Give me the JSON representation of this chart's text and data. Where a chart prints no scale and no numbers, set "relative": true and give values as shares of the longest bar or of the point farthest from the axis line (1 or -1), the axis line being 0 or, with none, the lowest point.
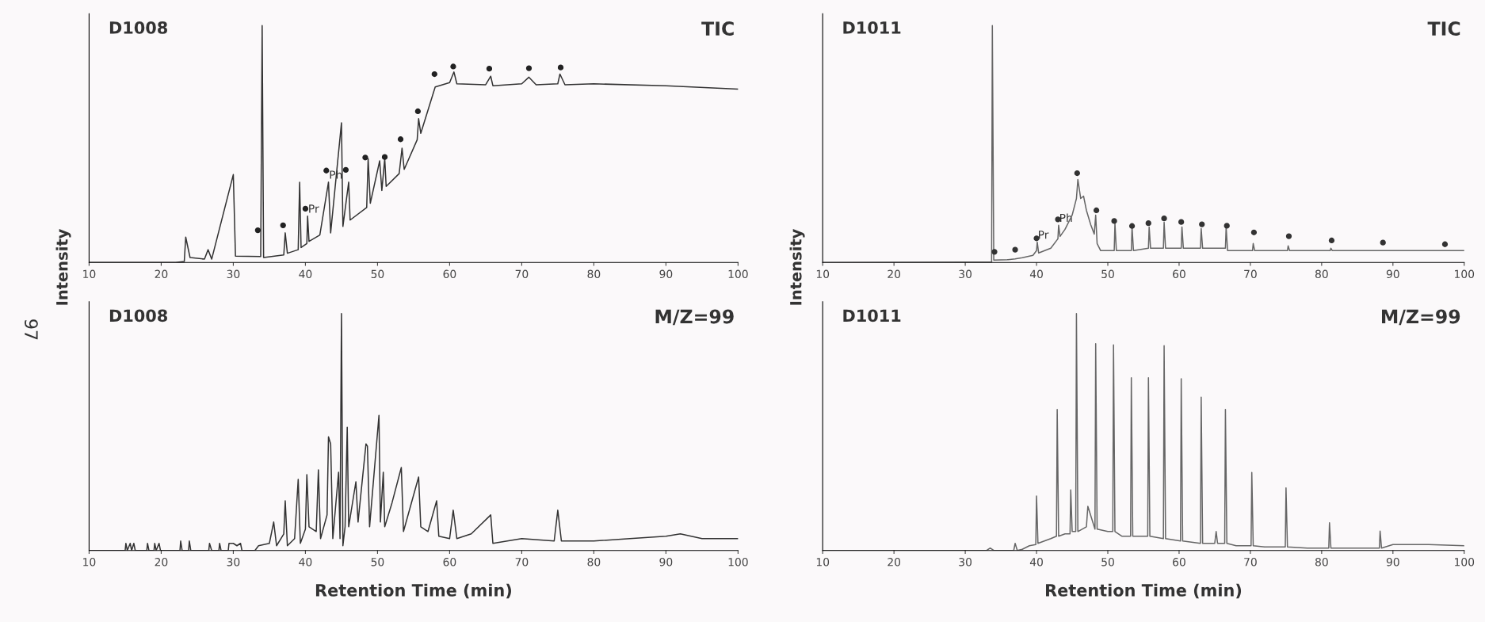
{
  "chart_data": [
    {
      "type": "line",
      "title": "D1008",
      "subtitle": "TIC",
      "ylabel": "Intensity",
      "relative": true,
      "xlim": [
        10,
        100
      ],
      "xticks": [
        10,
        20,
        30,
        40,
        50,
        60,
        70,
        80,
        90,
        100
      ],
      "grid": false,
      "legend": false,
      "annotations": [
        "97",
        {
          "text": "Pr",
          "x": 40.3,
          "y": 0.196
        },
        {
          "text": "Ph",
          "x": 43.2,
          "y": 0.339
        }
      ],
      "series": [
        {
          "color": "#333333",
          "marker": "none",
          "x": [
            10,
            22,
            23.2,
            23.4,
            24,
            26,
            26.5,
            27,
            30.0,
            30.3,
            33.8,
            34.0,
            34.2,
            37,
            37.2,
            37.5,
            39,
            39.2,
            39.4,
            40.2,
            40.3,
            40.5,
            42,
            43.2,
            43.5,
            45.0,
            45.2,
            46,
            46.2,
            48.5,
            48.7,
            49,
            50.3,
            50.6,
            51.0,
            51.2,
            53,
            53.4,
            53.7,
            55.5,
            55.7,
            56,
            57,
            58,
            60,
            60.6,
            61,
            65,
            65.7,
            66,
            70,
            71,
            72,
            75,
            75.3,
            76,
            80,
            90,
            100
          ],
          "values": [
            0,
            0,
            0.004,
            0.107,
            0.021,
            0.014,
            0.054,
            0.014,
            0.371,
            0.027,
            0.025,
            1.0,
            0.021,
            0.032,
            0.125,
            0.039,
            0.054,
            0.339,
            0.063,
            0.08,
            0.196,
            0.089,
            0.116,
            0.339,
            0.125,
            0.589,
            0.152,
            0.339,
            0.179,
            0.232,
            0.438,
            0.25,
            0.429,
            0.304,
            0.438,
            0.321,
            0.375,
            0.482,
            0.393,
            0.518,
            0.607,
            0.545,
            0.643,
            0.741,
            0.759,
            0.804,
            0.754,
            0.75,
            0.786,
            0.746,
            0.754,
            0.782,
            0.75,
            0.754,
            0.795,
            0.75,
            0.754,
            0.746,
            0.732
          ]
        },
        {
          "type": "scatter",
          "color": "#222222",
          "marker": "circle",
          "x": [
            33.4,
            36.9,
            40.0,
            42.9,
            45.6,
            48.3,
            51.0,
            53.2,
            55.6,
            57.9,
            60.5,
            65.5,
            71.0,
            75.4
          ],
          "values": [
            0.136,
            0.157,
            0.227,
            0.388,
            0.391,
            0.443,
            0.445,
            0.52,
            0.638,
            0.795,
            0.827,
            0.818,
            0.82,
            0.823
          ]
        }
      ]
    },
    {
      "type": "line",
      "title": "D1011",
      "subtitle": "TIC",
      "ylabel": "Intensity",
      "relative": true,
      "xlim": [
        10,
        100
      ],
      "xticks": [
        10,
        20,
        30,
        40,
        50,
        60,
        70,
        80,
        90,
        100
      ],
      "grid": false,
      "legend": false,
      "annotations": [
        {
          "text": "Pr",
          "x": 40.1,
          "y": 0.086
        },
        {
          "text": "Ph",
          "x": 43.1,
          "y": 0.157
        }
      ],
      "series": [
        {
          "color": "#666666",
          "marker": "none",
          "x": [
            10,
            30,
            33.7,
            33.8,
            34,
            36,
            37,
            38,
            39.5,
            40,
            40.1,
            40.3,
            42,
            43,
            43.1,
            43.3,
            44,
            45,
            45.6,
            45.8,
            46.2,
            46.6,
            47.0,
            47.6,
            48.1,
            48.3,
            48.5,
            49,
            50,
            50.9,
            51.0,
            51.2,
            53.3,
            53.4,
            53.6,
            55.7,
            55.8,
            56,
            57.8,
            57.9,
            58.1,
            60.3,
            60.4,
            60.6,
            63.0,
            63.1,
            63.3,
            66.5,
            66.6,
            66.8,
            70.3,
            70.4,
            70.6,
            75.2,
            75.3,
            75.5,
            81.2,
            81.3,
            81.5,
            88.3,
            88.5,
            97,
            100
          ],
          "values": [
            0,
            0.002,
            0.002,
            1.0,
            0.01,
            0.012,
            0.015,
            0.02,
            0.03,
            0.05,
            0.086,
            0.04,
            0.06,
            0.1,
            0.157,
            0.11,
            0.14,
            0.2,
            0.27,
            0.35,
            0.27,
            0.28,
            0.22,
            0.16,
            0.12,
            0.2,
            0.08,
            0.05,
            0.05,
            0.05,
            0.166,
            0.05,
            0.05,
            0.15,
            0.05,
            0.06,
            0.15,
            0.06,
            0.06,
            0.17,
            0.06,
            0.06,
            0.15,
            0.06,
            0.06,
            0.143,
            0.06,
            0.06,
            0.15,
            0.05,
            0.05,
            0.08,
            0.05,
            0.05,
            0.07,
            0.05,
            0.05,
            0.06,
            0.05,
            0.05,
            0.05,
            0.05,
            0.05
          ]
        },
        {
          "type": "scatter",
          "color": "#333333",
          "marker": "circle",
          "x": [
            34.1,
            37.0,
            40.0,
            43.0,
            45.7,
            48.4,
            50.9,
            53.4,
            55.7,
            57.9,
            60.3,
            63.2,
            66.7,
            70.5,
            75.4,
            81.4,
            88.6,
            97.3
          ],
          "values": [
            0.045,
            0.054,
            0.102,
            0.182,
            0.377,
            0.22,
            0.175,
            0.154,
            0.166,
            0.186,
            0.171,
            0.161,
            0.155,
            0.127,
            0.111,
            0.093,
            0.084,
            0.077
          ]
        }
      ]
    },
    {
      "type": "line",
      "title": "D1008",
      "subtitle": "M/Z=99",
      "xlabel": "Retention Time (min)",
      "relative": true,
      "xlim": [
        10,
        100
      ],
      "xticks": [
        10,
        20,
        30,
        40,
        50,
        60,
        70,
        80,
        90,
        100
      ],
      "grid": false,
      "legend": false,
      "series": [
        {
          "color": "#333333",
          "marker": "none",
          "x": [
            10,
            15,
            15.1,
            15.3,
            15.7,
            15.9,
            16.2,
            16.4,
            18,
            18.1,
            18.3,
            19,
            19.1,
            19.3,
            19.7,
            19.9,
            22.6,
            22.7,
            22.9,
            23.8,
            23.9,
            24.1,
            26.6,
            26.7,
            27,
            28,
            28.1,
            28.3,
            29.3,
            29.4,
            30,
            30.5,
            31,
            31.2,
            33,
            33.5,
            35,
            35.6,
            36,
            37,
            37.2,
            37.5,
            38.5,
            39,
            39.3,
            40,
            40.2,
            40.5,
            41.5,
            41.8,
            42.1,
            43,
            43.2,
            43.5,
            43.8,
            44.6,
            44.8,
            45.0,
            45.2,
            45.5,
            45.8,
            46,
            47,
            47.3,
            48.4,
            48.6,
            48.9,
            50.2,
            50.4,
            50.8,
            51,
            52,
            53.3,
            53.6,
            55.7,
            56,
            57,
            58.2,
            58.5,
            60,
            60.5,
            61,
            63,
            65.7,
            66,
            70,
            74.5,
            75,
            75.5,
            80,
            85,
            90,
            92,
            95,
            100
          ],
          "values": [
            0,
            0,
            0.03,
            0,
            0.03,
            0,
            0.03,
            0,
            0,
            0.03,
            0,
            0,
            0.03,
            0,
            0.03,
            0,
            0,
            0.04,
            0,
            0,
            0.04,
            0,
            0,
            0.03,
            0,
            0,
            0.03,
            0,
            0,
            0.03,
            0.03,
            0.02,
            0.03,
            0,
            0,
            0.02,
            0.03,
            0.12,
            0.02,
            0.07,
            0.21,
            0.02,
            0.05,
            0.3,
            0.03,
            0.09,
            0.32,
            0.1,
            0.08,
            0.34,
            0.05,
            0.15,
            0.48,
            0.45,
            0.05,
            0.33,
            0.05,
            1.0,
            0.02,
            0.1,
            0.52,
            0.1,
            0.29,
            0.12,
            0.45,
            0.44,
            0.1,
            0.57,
            0.12,
            0.33,
            0.1,
            0.2,
            0.35,
            0.08,
            0.31,
            0.1,
            0.08,
            0.21,
            0.06,
            0.05,
            0.17,
            0.05,
            0.07,
            0.15,
            0.03,
            0.05,
            0.04,
            0.17,
            0.04,
            0.04,
            0.05,
            0.06,
            0.07,
            0.05,
            0.05
          ]
        }
      ]
    },
    {
      "type": "line",
      "title": "D1011",
      "subtitle": "M/Z=99",
      "xlabel": "Retention Time (min)",
      "relative": true,
      "xlim": [
        10,
        100
      ],
      "xticks": [
        10,
        20,
        30,
        40,
        50,
        60,
        70,
        80,
        90,
        100
      ],
      "grid": false,
      "legend": false,
      "series": [
        {
          "color": "#666666",
          "marker": "none",
          "x": [
            10,
            33,
            33.5,
            34,
            36.8,
            37,
            37.3,
            38,
            39,
            39.9,
            40.0,
            40.2,
            42,
            42.8,
            42.9,
            43.1,
            44,
            44.7,
            44.8,
            45,
            45.5,
            45.6,
            45.8,
            47,
            47.2,
            48.2,
            48.3,
            48.5,
            50,
            50.7,
            50.8,
            51,
            52,
            53.2,
            53.3,
            53.5,
            55,
            55.6,
            55.7,
            55.9,
            57.8,
            57.9,
            58.1,
            60.2,
            60.3,
            60.5,
            63.0,
            63.1,
            63.3,
            65,
            65.2,
            65.4,
            66.4,
            66.5,
            66.7,
            68,
            70.1,
            70.2,
            70.4,
            72,
            74.9,
            75.0,
            75.2,
            78,
            81.0,
            81.1,
            81.3,
            85,
            88.1,
            88.2,
            88.4,
            90,
            95,
            100
          ],
          "values": [
            0,
            0,
            0.01,
            0,
            0,
            0.03,
            0,
            0.005,
            0.02,
            0.025,
            0.23,
            0.03,
            0.05,
            0.06,
            0.595,
            0.06,
            0.07,
            0.07,
            0.256,
            0.08,
            0.08,
            1.0,
            0.08,
            0.1,
            0.186,
            0.09,
            0.873,
            0.09,
            0.08,
            0.08,
            0.868,
            0.08,
            0.06,
            0.06,
            0.729,
            0.06,
            0.06,
            0.06,
            0.729,
            0.06,
            0.05,
            0.864,
            0.05,
            0.04,
            0.725,
            0.04,
            0.03,
            0.647,
            0.03,
            0.03,
            0.08,
            0.03,
            0.03,
            0.595,
            0.03,
            0.02,
            0.02,
            0.329,
            0.02,
            0.015,
            0.015,
            0.264,
            0.015,
            0.01,
            0.01,
            0.117,
            0.01,
            0.01,
            0.01,
            0.082,
            0.01,
            0.025,
            0.025,
            0.02
          ]
        }
      ]
    }
  ]
}
